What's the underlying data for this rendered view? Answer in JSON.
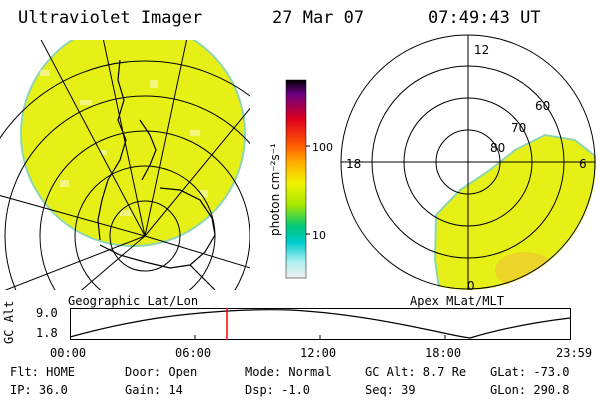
{
  "header": {
    "instrument": "Ultraviolet Imager",
    "date": "27 Mar 07",
    "time": "07:49:43 UT"
  },
  "left_map": {
    "label": "Geographic Lat/Lon"
  },
  "right_map": {
    "label": "Apex MLat/MLT",
    "mlt_labels": {
      "top": "12",
      "left": "18",
      "right": "6",
      "bottom": "0"
    },
    "lat_labels": [
      "60",
      "70",
      "80"
    ]
  },
  "colorbar": {
    "unit_label": "photon cm⁻²s⁻¹",
    "ticks": [
      "100",
      "10"
    ],
    "scale": "log"
  },
  "timeline": {
    "axis_label": "GC Alt",
    "y_ticks": [
      "9.0",
      "1.8"
    ],
    "x_ticks": [
      "00:00",
      "06:00",
      "12:00",
      "18:00",
      "23:59"
    ],
    "current_marker_time": "07:49:43"
  },
  "status": {
    "flt": "Flt: HOME",
    "ip": "IP: 36.0",
    "door": "Door: Open",
    "gain": "Gain: 14",
    "mode": "Mode: Normal",
    "dsp": "Dsp:  -1.0",
    "gc_alt": "GC Alt: 8.7 Re",
    "seq": "Seq: 39",
    "glat": "GLat: -73.0",
    "glon": "GLon: 290.8"
  },
  "colors": {
    "aurora_fill": "#e6f016",
    "aurora_edge": "#8fd6b0",
    "marker": "#ff0000"
  }
}
